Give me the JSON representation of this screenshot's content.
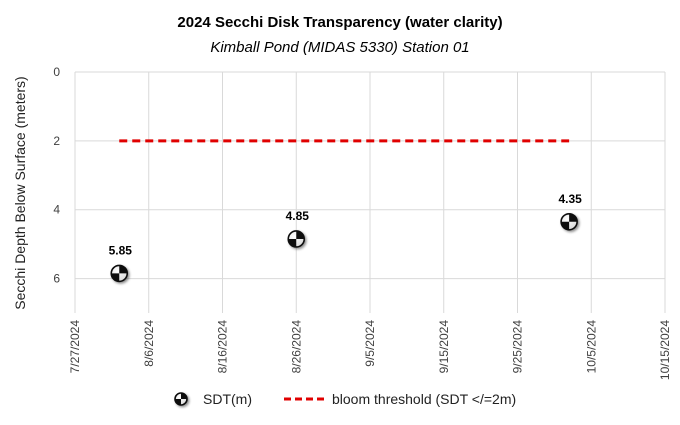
{
  "chart_data": {
    "type": "scatter",
    "title": "2024 Secchi Disk Transparency (water clarity)",
    "subtitle": "Kimball Pond (MIDAS 5330) Station 01",
    "ylabel": "Secchi Depth Below Surface (meters)",
    "xlabel": "",
    "ylim": [
      0,
      7
    ],
    "y_inverted": true,
    "yticks": [
      0,
      2,
      4,
      6
    ],
    "xlim": [
      "7/27/2024",
      "10/15/2024"
    ],
    "xticks": [
      "7/27/2024",
      "8/6/2024",
      "8/16/2024",
      "8/26/2024",
      "9/5/2024",
      "9/15/2024",
      "9/25/2024",
      "10/5/2024",
      "10/15/2024"
    ],
    "grid": true,
    "legend_position": "bottom",
    "series": [
      {
        "name": "SDT(m)",
        "type": "scatter",
        "marker": "secchi-disk",
        "points": [
          {
            "x": "8/2/2024",
            "y": 5.85
          },
          {
            "x": "8/26/2024",
            "y": 4.85
          },
          {
            "x": "10/2/2024",
            "y": 4.35
          }
        ]
      },
      {
        "name": "bloom threshold (SDT </=2m)",
        "type": "line",
        "style": "dashed",
        "color": "#e00000",
        "points": [
          {
            "x": "8/2/2024",
            "y": 2
          },
          {
            "x": "10/2/2024",
            "y": 2
          }
        ]
      }
    ]
  }
}
